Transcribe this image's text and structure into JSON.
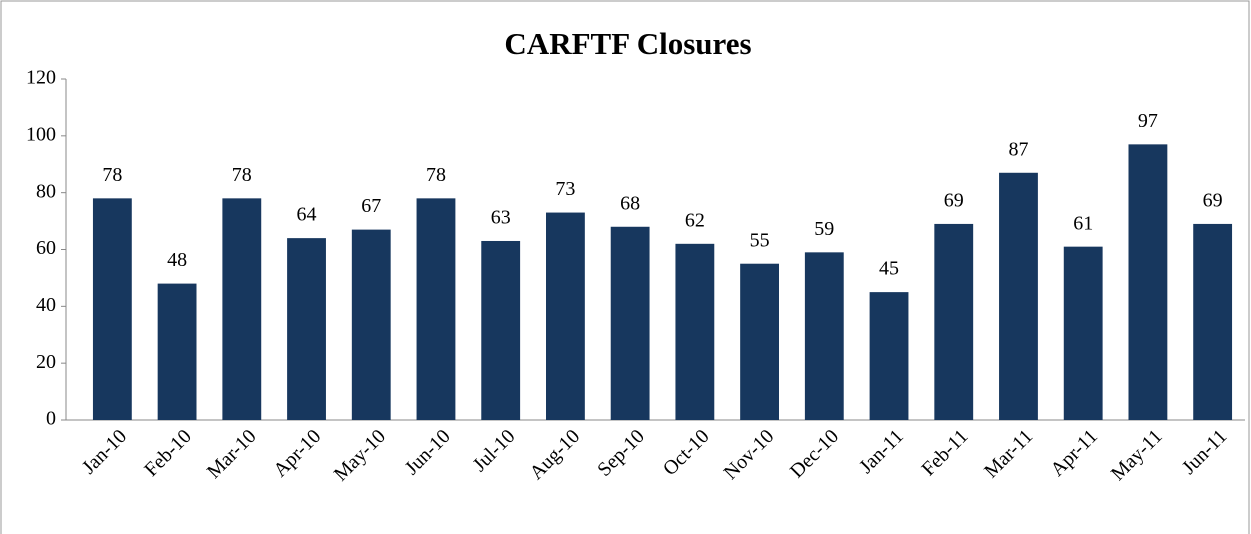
{
  "chart_data": {
    "type": "bar",
    "title": "CARFTF Closures",
    "categories": [
      "Jan-10",
      "Feb-10",
      "Mar-10",
      "Apr-10",
      "May-10",
      "Jun-10",
      "Jul-10",
      "Aug-10",
      "Sep-10",
      "Oct-10",
      "Nov-10",
      "Dec-10",
      "Jan-11",
      "Feb-11",
      "Mar-11",
      "Apr-11",
      "May-11",
      "Jun-11"
    ],
    "values": [
      78,
      48,
      78,
      64,
      67,
      78,
      63,
      73,
      68,
      62,
      55,
      59,
      45,
      69,
      87,
      61,
      97,
      69
    ],
    "color": "#17375e",
    "ylim": [
      0,
      120
    ],
    "yticks": [
      0,
      20,
      40,
      60,
      80,
      100,
      120
    ],
    "grid": false
  }
}
